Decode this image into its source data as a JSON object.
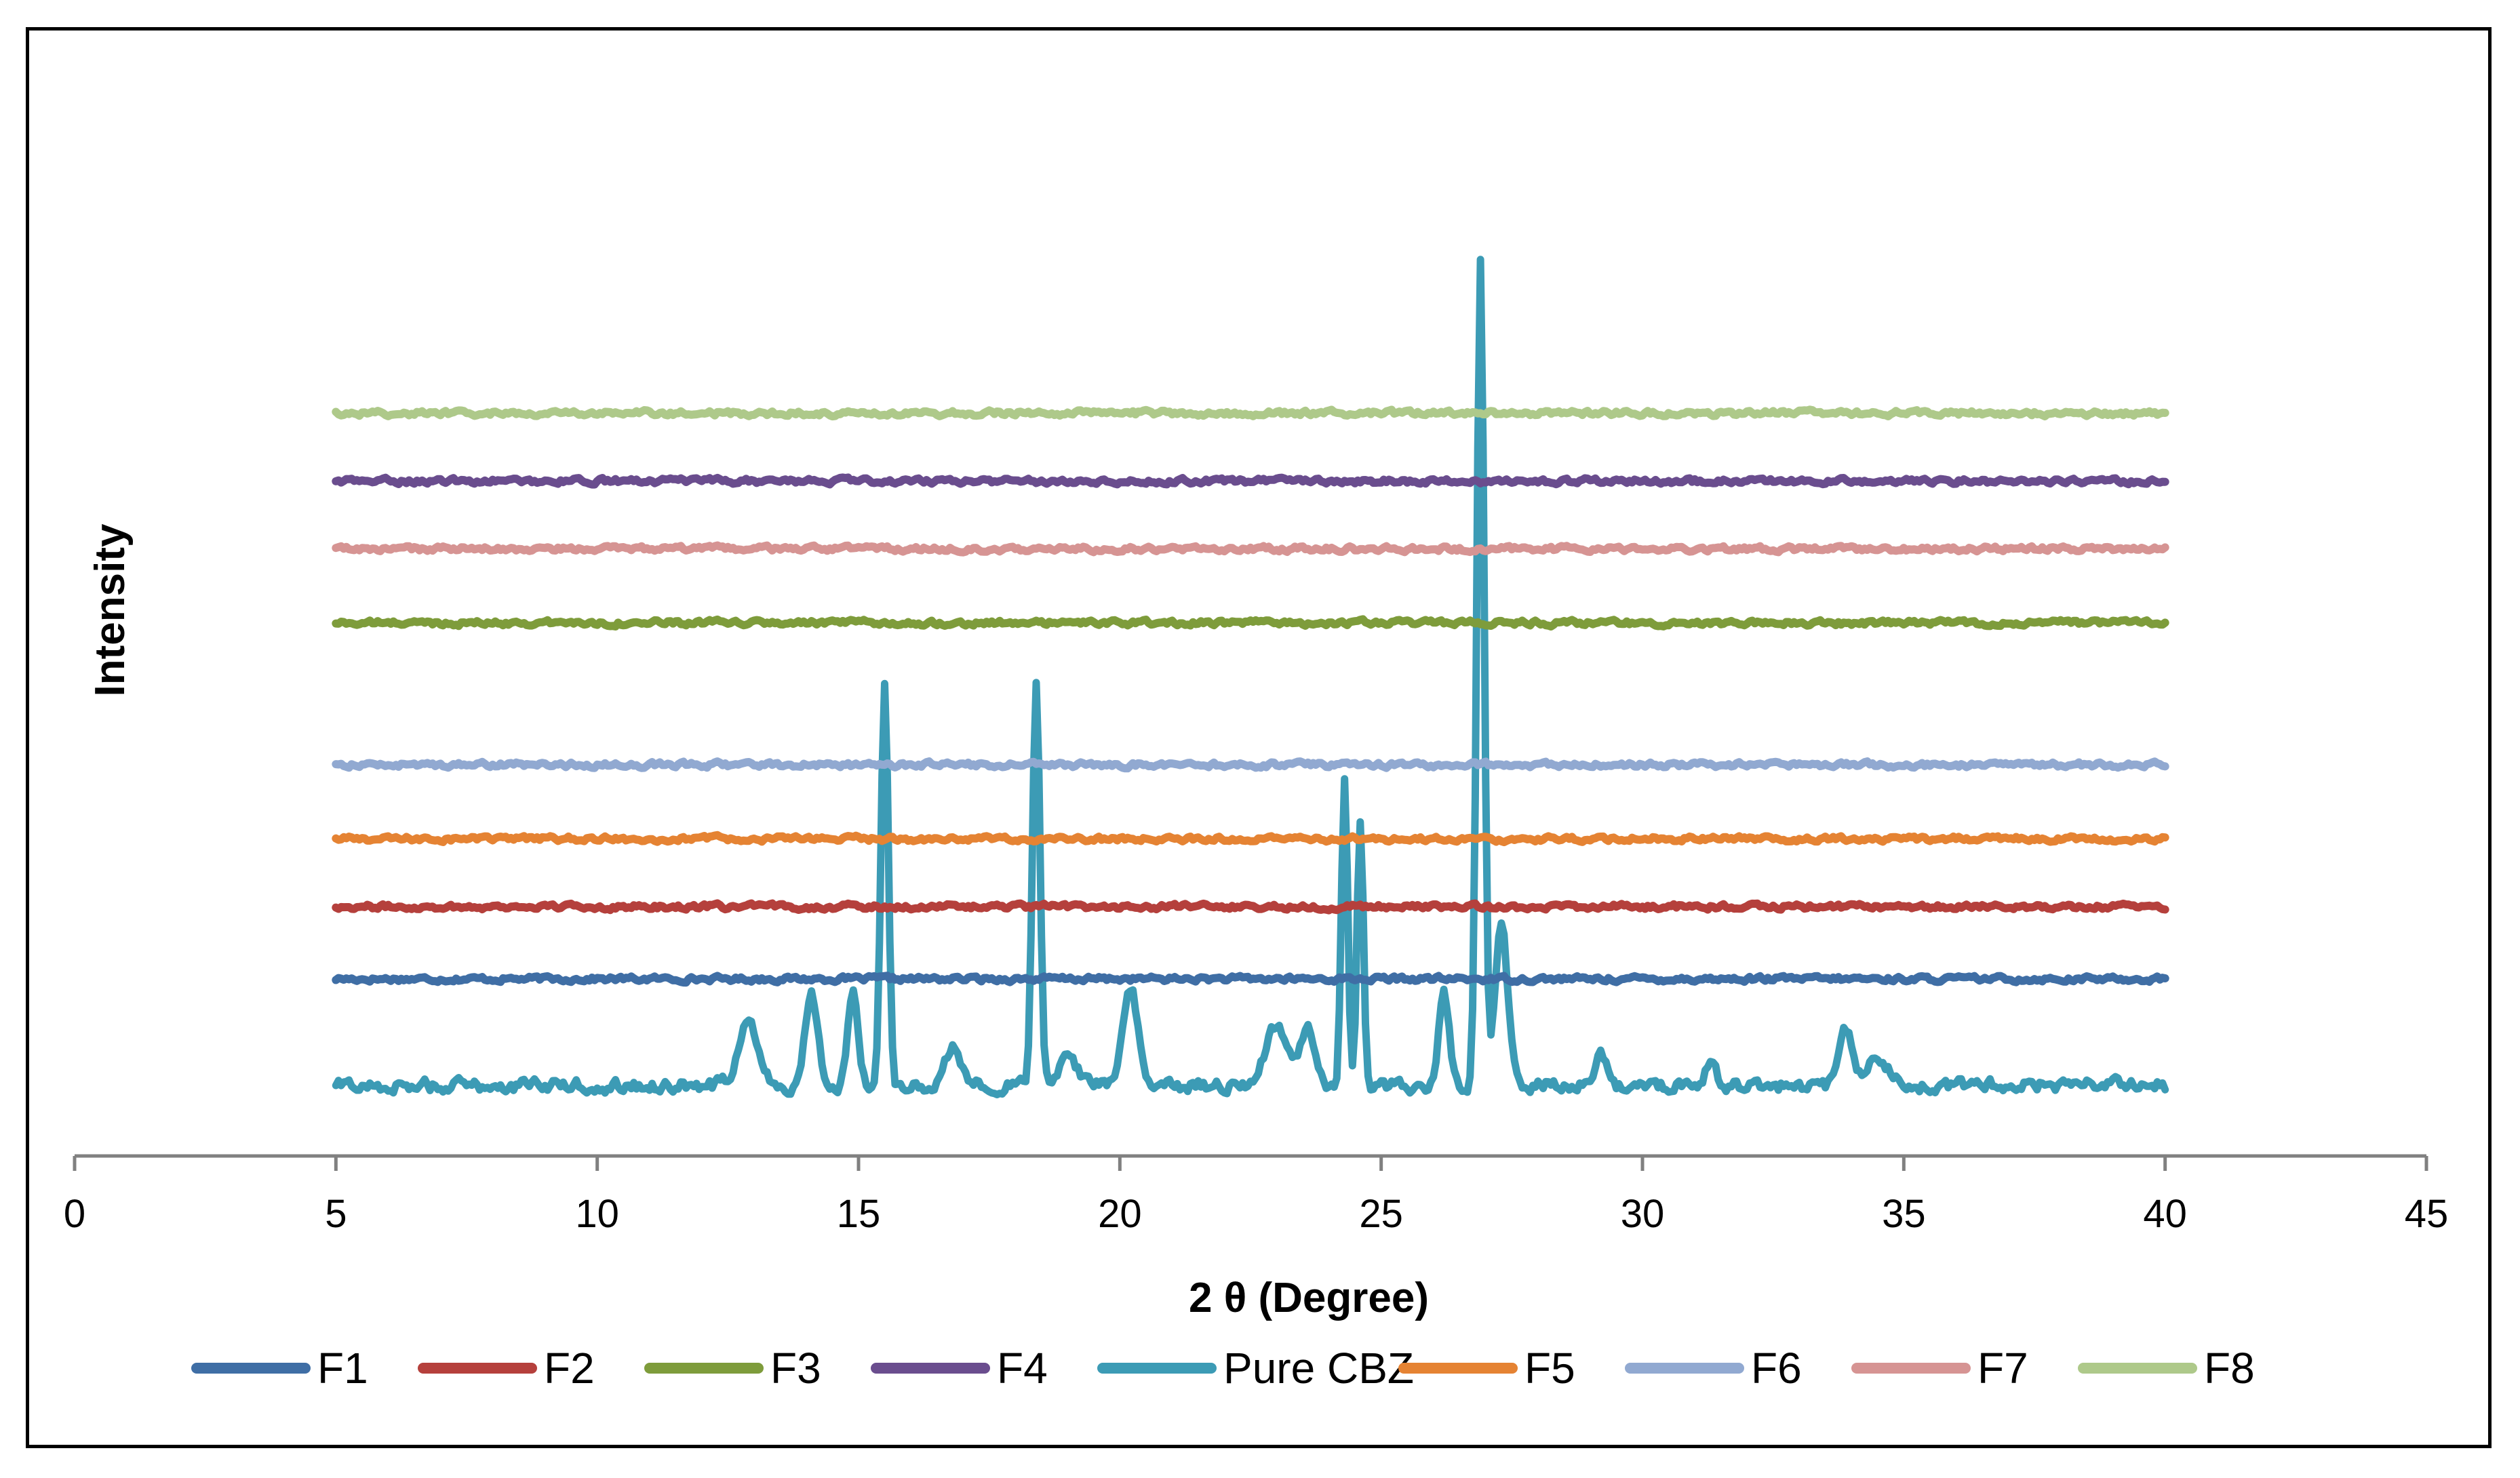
{
  "chart_data": {
    "type": "line",
    "title": "",
    "xlabel": "2 θ  (Degree)",
    "ylabel": "Intensity",
    "xlim": [
      0,
      45
    ],
    "x_ticks": [
      "0",
      "5",
      "10",
      "15",
      "20",
      "25",
      "30",
      "35",
      "40",
      "45"
    ],
    "y_axis_visible": false,
    "grid": false,
    "legend_position": "bottom",
    "x_range": [
      5,
      40
    ],
    "series": [
      {
        "name": "F1",
        "color": "#3f6ea5",
        "baseline": 243,
        "noise": 7,
        "peaks": []
      },
      {
        "name": "F2",
        "color": "#b5403c",
        "baseline": 360,
        "noise": 7,
        "peaks": []
      },
      {
        "name": "F3",
        "color": "#7e9c3b",
        "baseline": 820,
        "noise": 7,
        "peaks": []
      },
      {
        "name": "F4",
        "color": "#6a4d8e",
        "baseline": 1050,
        "noise": 7,
        "peaks": []
      },
      {
        "name": "Pure CBZ",
        "color": "#3c9bb5",
        "baseline": 70,
        "noise": 18,
        "peaks": [
          [
            12.9,
            100,
            0.2
          ],
          [
            14.1,
            150,
            0.12
          ],
          [
            14.9,
            150,
            0.1
          ],
          [
            15.5,
            650,
            0.07
          ],
          [
            16.8,
            60,
            0.15
          ],
          [
            18.4,
            660,
            0.07
          ],
          [
            19.0,
            45,
            0.2
          ],
          [
            20.2,
            160,
            0.14
          ],
          [
            23.0,
            100,
            0.2
          ],
          [
            23.6,
            90,
            0.15
          ],
          [
            24.3,
            500,
            0.06
          ],
          [
            24.6,
            430,
            0.06
          ],
          [
            26.2,
            150,
            0.1
          ],
          [
            26.9,
            1330,
            0.07
          ],
          [
            27.3,
            260,
            0.12
          ],
          [
            29.2,
            60,
            0.1
          ],
          [
            31.3,
            45,
            0.1
          ],
          [
            33.9,
            85,
            0.12
          ],
          [
            34.5,
            40,
            0.2
          ]
        ]
      },
      {
        "name": "F5",
        "color": "#e58333",
        "baseline": 470,
        "noise": 7,
        "peaks": []
      },
      {
        "name": "F6",
        "color": "#91a9d1",
        "baseline": 590,
        "noise": 7,
        "peaks": []
      },
      {
        "name": "F7",
        "color": "#d69493",
        "baseline": 940,
        "noise": 7,
        "peaks": []
      },
      {
        "name": "F8",
        "color": "#aec98a",
        "baseline": 1160,
        "noise": 7,
        "peaks": []
      }
    ]
  }
}
